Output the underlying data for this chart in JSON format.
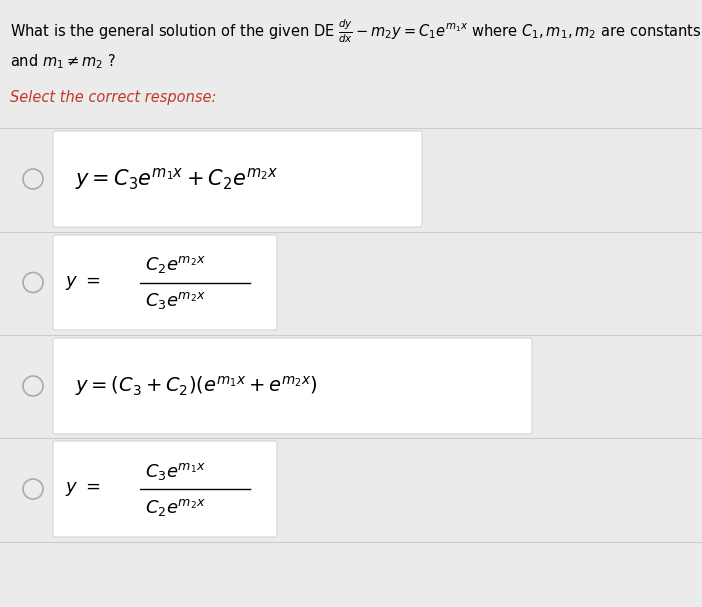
{
  "bg_color": "#ebebeb",
  "white_color": "#ffffff",
  "select_color": "#c0392b",
  "title_fontsize": 10.5,
  "select_fontsize": 10.5,
  "option1_fontsize": 15,
  "option2_fontsize": 13,
  "option3_fontsize": 14,
  "option4_fontsize": 13,
  "circle_color": "#aaaaaa",
  "separator_color": "#cccccc",
  "box_edge_color": "#d0d0d0"
}
